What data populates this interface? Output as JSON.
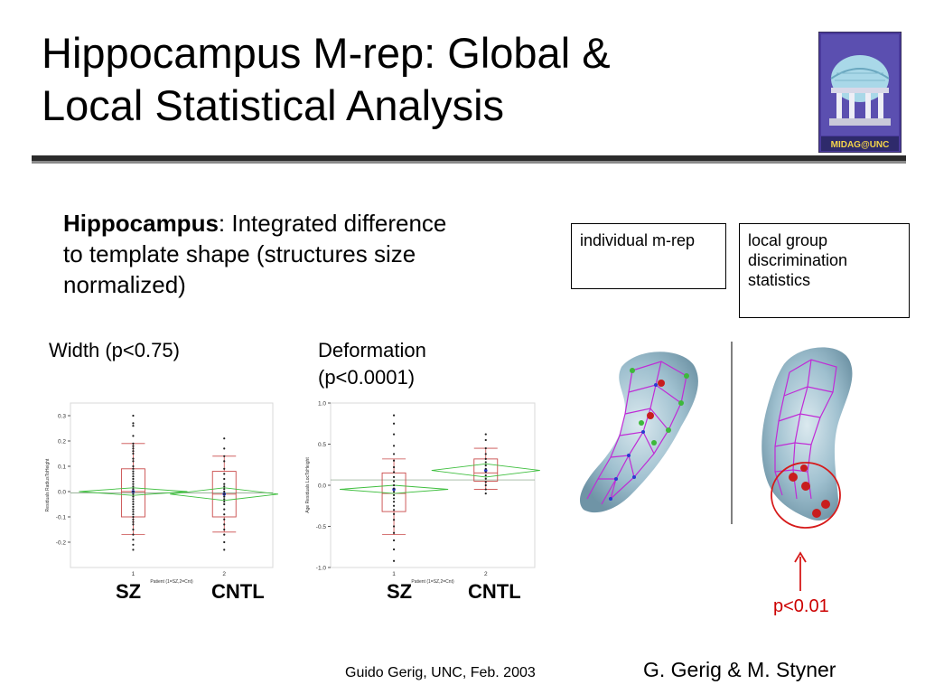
{
  "slide": {
    "title": "Hippocampus M-rep: Global &\nLocal Statistical Analysis",
    "logo_text": "MIDAG@UNC",
    "subtitle_bold": "Hippocampus",
    "subtitle_rest": ": Integrated difference to template shape (structures size normalized)",
    "box_individual": "individual m-rep",
    "box_local": "local group discrimination statistics",
    "width_label": "Width (p<0.75)",
    "deformation_label": "Deformation (p<0.0001)",
    "group_sz": "SZ",
    "group_cntl": "CNTL",
    "p_value": "p<0.01",
    "footer_left": "Guido Gerig, UNC, Feb. 2003",
    "footer_right": "G. Gerig & M. Styner"
  },
  "chart_data": [
    {
      "type": "box",
      "name": "width",
      "categories": [
        "1",
        "2"
      ],
      "ylabel": "Residuals RadiusToHeight",
      "xlabel": "Patient (1=SZ,2=Cnt)",
      "ylim": [
        -0.3,
        0.35
      ],
      "yticks": [
        "0.3",
        "0.2",
        "0.1",
        "0.0",
        "-0.1",
        "-0.2"
      ],
      "boxes": [
        {
          "q1": -0.1,
          "median": 0.0,
          "q3": 0.09,
          "low": -0.17,
          "high": 0.19
        },
        {
          "q1": -0.1,
          "median": -0.01,
          "q3": 0.08,
          "low": -0.16,
          "high": 0.14
        }
      ],
      "points": [
        [
          0.3,
          0.27,
          0.26,
          0.22,
          0.19,
          0.18,
          0.17,
          0.16,
          0.15,
          0.13,
          0.12,
          0.1,
          0.09,
          0.08,
          0.07,
          0.06,
          0.05,
          0.04,
          0.03,
          0.02,
          0.01,
          0.0,
          -0.01,
          -0.02,
          -0.03,
          -0.04,
          -0.05,
          -0.06,
          -0.07,
          -0.08,
          -0.09,
          -0.1,
          -0.11,
          -0.12,
          -0.13,
          -0.15,
          -0.17,
          -0.19,
          -0.21,
          -0.23
        ],
        [
          0.21,
          0.17,
          0.14,
          0.12,
          0.09,
          0.07,
          0.05,
          0.03,
          0.02,
          0.01,
          0.0,
          -0.01,
          -0.02,
          -0.03,
          -0.04,
          -0.05,
          -0.07,
          -0.09,
          -0.11,
          -0.13,
          -0.15,
          -0.17,
          -0.2,
          -0.23
        ]
      ],
      "means": [
        0.0,
        -0.01
      ],
      "diamond_halfwidth": [
        0.015,
        0.025
      ]
    },
    {
      "type": "box",
      "name": "deformation",
      "categories": [
        "1",
        "2"
      ],
      "ylabel": "Age Residuals LocToHeight",
      "xlabel": "Patient (1=SZ,2=Cnt)",
      "ylim": [
        -1.0,
        1.0
      ],
      "yticks": [
        "1.0",
        "0.5",
        "0.0",
        "-0.5",
        "-1.0"
      ],
      "boxes": [
        {
          "q1": -0.32,
          "median": -0.1,
          "q3": 0.15,
          "low": -0.6,
          "high": 0.32
        },
        {
          "q1": 0.05,
          "median": 0.15,
          "q3": 0.32,
          "low": -0.05,
          "high": 0.45
        }
      ],
      "points": [
        [
          0.85,
          0.75,
          0.62,
          0.48,
          0.38,
          0.3,
          0.22,
          0.16,
          0.1,
          0.05,
          0.0,
          -0.04,
          -0.08,
          -0.12,
          -0.16,
          -0.2,
          -0.25,
          -0.3,
          -0.35,
          -0.42,
          -0.5,
          -0.58,
          -0.67,
          -0.78,
          -0.92
        ],
        [
          0.62,
          0.55,
          0.45,
          0.38,
          0.32,
          0.28,
          0.24,
          0.2,
          0.16,
          0.12,
          0.08,
          0.04,
          0.0,
          -0.05,
          -0.1
        ]
      ],
      "means": [
        -0.05,
        0.18
      ],
      "diamond_halfwidth": [
        0.05,
        0.08
      ]
    }
  ]
}
